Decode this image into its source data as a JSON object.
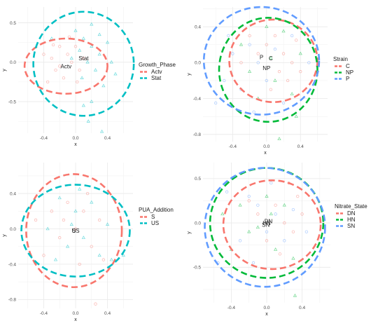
{
  "figure": {
    "colors": {
      "red": "#f8766d",
      "green": "#00ba38",
      "blue": "#619cff",
      "teal": "#00bfc4",
      "grid": "#ebebeb"
    }
  },
  "chart_data": [
    {
      "type": "scatter",
      "xlabel": "x",
      "ylabel": "y",
      "xlim": [
        -0.72,
        0.72
      ],
      "ylim": [
        -0.9,
        0.7
      ],
      "xticks": [
        -0.4,
        0.0,
        0.4
      ],
      "yticks": [
        -0.5,
        0.0,
        0.5
      ],
      "grid": true,
      "legend": {
        "title": "Growth_Phase",
        "placement": "right"
      },
      "series": [
        {
          "name": "Actv",
          "color": "#f8766d",
          "centroid": [
            -0.12,
            -0.05
          ],
          "ellipse": {
            "center": [
              -0.12,
              -0.05
            ],
            "rx": 0.52,
            "ry": 0.35
          },
          "points": [
            [
              -0.4,
              0.1
            ],
            [
              -0.3,
              0.05
            ],
            [
              -0.25,
              -0.1
            ],
            [
              -0.2,
              0.2
            ],
            [
              -0.15,
              -0.2
            ],
            [
              -0.1,
              0.1
            ],
            [
              -0.05,
              0.0
            ],
            [
              0.0,
              0.2
            ],
            [
              0.05,
              -0.1
            ],
            [
              -0.35,
              -0.25
            ],
            [
              -0.2,
              -0.05
            ],
            [
              0.1,
              0.05
            ],
            [
              -0.28,
              0.22
            ],
            [
              0.02,
              -0.25
            ],
            [
              -0.08,
              0.32
            ]
          ]
        },
        {
          "name": "Stat",
          "color": "#00bfc4",
          "centroid": [
            0.1,
            0.05
          ],
          "ellipse": {
            "center": [
              0.1,
              -0.02
            ],
            "rx": 0.63,
            "ry": 0.66
          },
          "points": [
            [
              0.0,
              0.4
            ],
            [
              0.1,
              0.3
            ],
            [
              0.2,
              0.2
            ],
            [
              0.3,
              0.1
            ],
            [
              0.15,
              0.0
            ],
            [
              0.25,
              -0.1
            ],
            [
              0.05,
              0.15
            ],
            [
              0.4,
              0.25
            ],
            [
              0.35,
              -0.3
            ],
            [
              0.2,
              -0.5
            ],
            [
              0.1,
              -0.55
            ],
            [
              -0.05,
              0.05
            ],
            [
              0.45,
              0.0
            ],
            [
              0.3,
              0.35
            ],
            [
              0.2,
              0.48
            ],
            [
              0.16,
              -0.75
            ],
            [
              0.33,
              -0.88
            ],
            [
              -0.3,
              0.3
            ],
            [
              0.08,
              -0.2
            ],
            [
              0.5,
              -0.15
            ]
          ]
        }
      ]
    },
    {
      "type": "scatter",
      "xlabel": "x",
      "ylabel": "y",
      "xlim": [
        -0.75,
        0.72
      ],
      "ylim": [
        -0.88,
        0.62
      ],
      "xticks": [
        -0.4,
        0.0,
        0.4
      ],
      "yticks": [
        -0.8,
        -0.4,
        0.0,
        0.4
      ],
      "grid": true,
      "legend": {
        "title": "Strain",
        "placement": "right"
      },
      "series": [
        {
          "name": "C",
          "color": "#f8766d",
          "centroid": [
            0.05,
            0.05
          ],
          "ellipse": {
            "center": [
              0.08,
              0.02
            ],
            "rx": 0.52,
            "ry": 0.46
          },
          "points": [
            [
              0.1,
              0.3
            ],
            [
              0.2,
              0.1
            ],
            [
              0.3,
              0.0
            ],
            [
              0.0,
              0.2
            ],
            [
              -0.1,
              0.1
            ],
            [
              0.25,
              -0.2
            ],
            [
              0.35,
              0.25
            ],
            [
              0.15,
              -0.1
            ],
            [
              -0.2,
              0.3
            ],
            [
              0.4,
              -0.1
            ],
            [
              0.05,
              -0.3
            ],
            [
              -0.3,
              0.0
            ]
          ]
        },
        {
          "name": "NP",
          "color": "#00ba38",
          "centroid": [
            0.0,
            -0.06
          ],
          "ellipse": {
            "center": [
              0.02,
              -0.08
            ],
            "rx": 0.58,
            "ry": 0.58
          },
          "points": [
            [
              0.0,
              0.4
            ],
            [
              0.1,
              -0.2
            ],
            [
              -0.2,
              -0.1
            ],
            [
              0.2,
              0.35
            ],
            [
              0.3,
              -0.35
            ],
            [
              -0.1,
              -0.4
            ],
            [
              0.4,
              0.1
            ],
            [
              -0.3,
              0.2
            ],
            [
              0.05,
              0.05
            ],
            [
              0.35,
              -0.6
            ],
            [
              0.15,
              -0.85
            ]
          ]
        },
        {
          "name": "P",
          "color": "#619cff",
          "centroid": [
            -0.06,
            0.06
          ],
          "ellipse": {
            "center": [
              -0.06,
              0.02
            ],
            "rx": 0.68,
            "ry": 0.6
          },
          "points": [
            [
              -0.5,
              -0.2
            ],
            [
              -0.4,
              0.1
            ],
            [
              -0.3,
              -0.3
            ],
            [
              -0.2,
              0.2
            ],
            [
              -0.1,
              0.0
            ],
            [
              0.0,
              -0.2
            ],
            [
              0.1,
              0.15
            ],
            [
              -0.45,
              0.3
            ],
            [
              0.2,
              -0.45
            ],
            [
              -0.6,
              -0.45
            ],
            [
              0.3,
              0.3
            ],
            [
              0.5,
              0.0
            ],
            [
              -0.15,
              -0.55
            ]
          ]
        }
      ]
    },
    {
      "type": "scatter",
      "xlabel": "x",
      "ylabel": "y",
      "xlim": [
        -0.72,
        0.72
      ],
      "ylim": [
        -0.9,
        0.75
      ],
      "xticks": [
        -0.4,
        0.0,
        0.4
      ],
      "yticks": [
        -0.8,
        -0.4,
        0.0,
        0.4
      ],
      "grid": true,
      "legend": {
        "title": "PUA_Addition",
        "placement": "right"
      },
      "series": [
        {
          "name": "S",
          "color": "#f8766d",
          "centroid": [
            -0.02,
            -0.02
          ],
          "ellipse": {
            "center": [
              -0.02,
              -0.02
            ],
            "rx": 0.6,
            "ry": 0.64
          },
          "points": [
            [
              -0.3,
              0.2
            ],
            [
              -0.2,
              -0.1
            ],
            [
              -0.1,
              0.3
            ],
            [
              0.0,
              0.0
            ],
            [
              0.1,
              0.2
            ],
            [
              0.2,
              -0.2
            ],
            [
              0.3,
              0.1
            ],
            [
              -0.4,
              -0.3
            ],
            [
              0.05,
              -0.4
            ],
            [
              -0.15,
              0.1
            ],
            [
              0.35,
              -0.35
            ],
            [
              0.15,
              0.4
            ],
            [
              -0.5,
              0.1
            ],
            [
              0.25,
              -0.85
            ]
          ]
        },
        {
          "name": "US",
          "color": "#00bfc4",
          "centroid": [
            0.0,
            -0.02
          ],
          "ellipse": {
            "center": [
              0.0,
              -0.02
            ],
            "rx": 0.68,
            "ry": 0.52
          },
          "points": [
            [
              -0.2,
              0.35
            ],
            [
              -0.1,
              -0.2
            ],
            [
              0.0,
              0.2
            ],
            [
              0.1,
              -0.1
            ],
            [
              0.2,
              0.3
            ],
            [
              0.3,
              -0.3
            ],
            [
              0.4,
              0.05
            ],
            [
              -0.35,
              0.0
            ],
            [
              0.45,
              -0.35
            ],
            [
              -0.25,
              -0.35
            ],
            [
              0.05,
              0.45
            ],
            [
              0.6,
              -0.3
            ],
            [
              -0.05,
              0.05
            ]
          ]
        }
      ]
    },
    {
      "type": "scatter",
      "xlabel": "x",
      "ylabel": "y",
      "xlim": [
        -0.72,
        0.72
      ],
      "ylim": [
        -0.9,
        0.68
      ],
      "xticks": [
        -0.4,
        0.0,
        0.4
      ],
      "yticks": [
        -0.5,
        0.0,
        0.5
      ],
      "grid": true,
      "legend": {
        "title": "Nitrate_State",
        "placement": "right"
      },
      "series": [
        {
          "name": "DN",
          "color": "#f8766d",
          "centroid": [
            0.02,
            0.02
          ],
          "ellipse": {
            "center": [
              0.06,
              -0.02
            ],
            "rx": 0.55,
            "ry": 0.5
          },
          "points": [
            [
              0.1,
              0.2
            ],
            [
              0.2,
              0.0
            ],
            [
              0.3,
              -0.1
            ],
            [
              -0.1,
              0.1
            ],
            [
              0.0,
              -0.2
            ],
            [
              0.35,
              0.3
            ],
            [
              0.15,
              -0.35
            ],
            [
              -0.2,
              0.25
            ],
            [
              0.4,
              0.1
            ],
            [
              0.25,
              0.45
            ]
          ]
        },
        {
          "name": "HN",
          "color": "#00ba38",
          "centroid": [
            0.0,
            0.0
          ],
          "ellipse": {
            "center": [
              0.0,
              0.0
            ],
            "rx": 0.64,
            "ry": 0.62
          },
          "points": [
            [
              -0.3,
              0.2
            ],
            [
              -0.2,
              -0.1
            ],
            [
              0.0,
              0.3
            ],
            [
              0.1,
              -0.3
            ],
            [
              -0.1,
              -0.05
            ],
            [
              0.2,
              0.2
            ],
            [
              -0.4,
              -0.3
            ],
            [
              0.3,
              -0.4
            ],
            [
              0.05,
              0.1
            ],
            [
              -0.5,
              0.1
            ],
            [
              0.32,
              -0.82
            ]
          ]
        },
        {
          "name": "SN",
          "color": "#619cff",
          "centroid": [
            -0.01,
            -0.02
          ],
          "ellipse": {
            "center": [
              -0.02,
              -0.05
            ],
            "rx": 0.68,
            "ry": 0.67
          },
          "points": [
            [
              -0.2,
              0.3
            ],
            [
              -0.1,
              0.2
            ],
            [
              0.0,
              -0.1
            ],
            [
              0.1,
              0.1
            ],
            [
              -0.3,
              -0.2
            ],
            [
              0.2,
              -0.2
            ],
            [
              0.3,
              0.15
            ],
            [
              -0.45,
              0.35
            ],
            [
              0.45,
              -0.1
            ],
            [
              -0.15,
              -0.45
            ],
            [
              0.05,
              0.45
            ],
            [
              -0.55,
              -0.45
            ]
          ]
        }
      ]
    }
  ]
}
